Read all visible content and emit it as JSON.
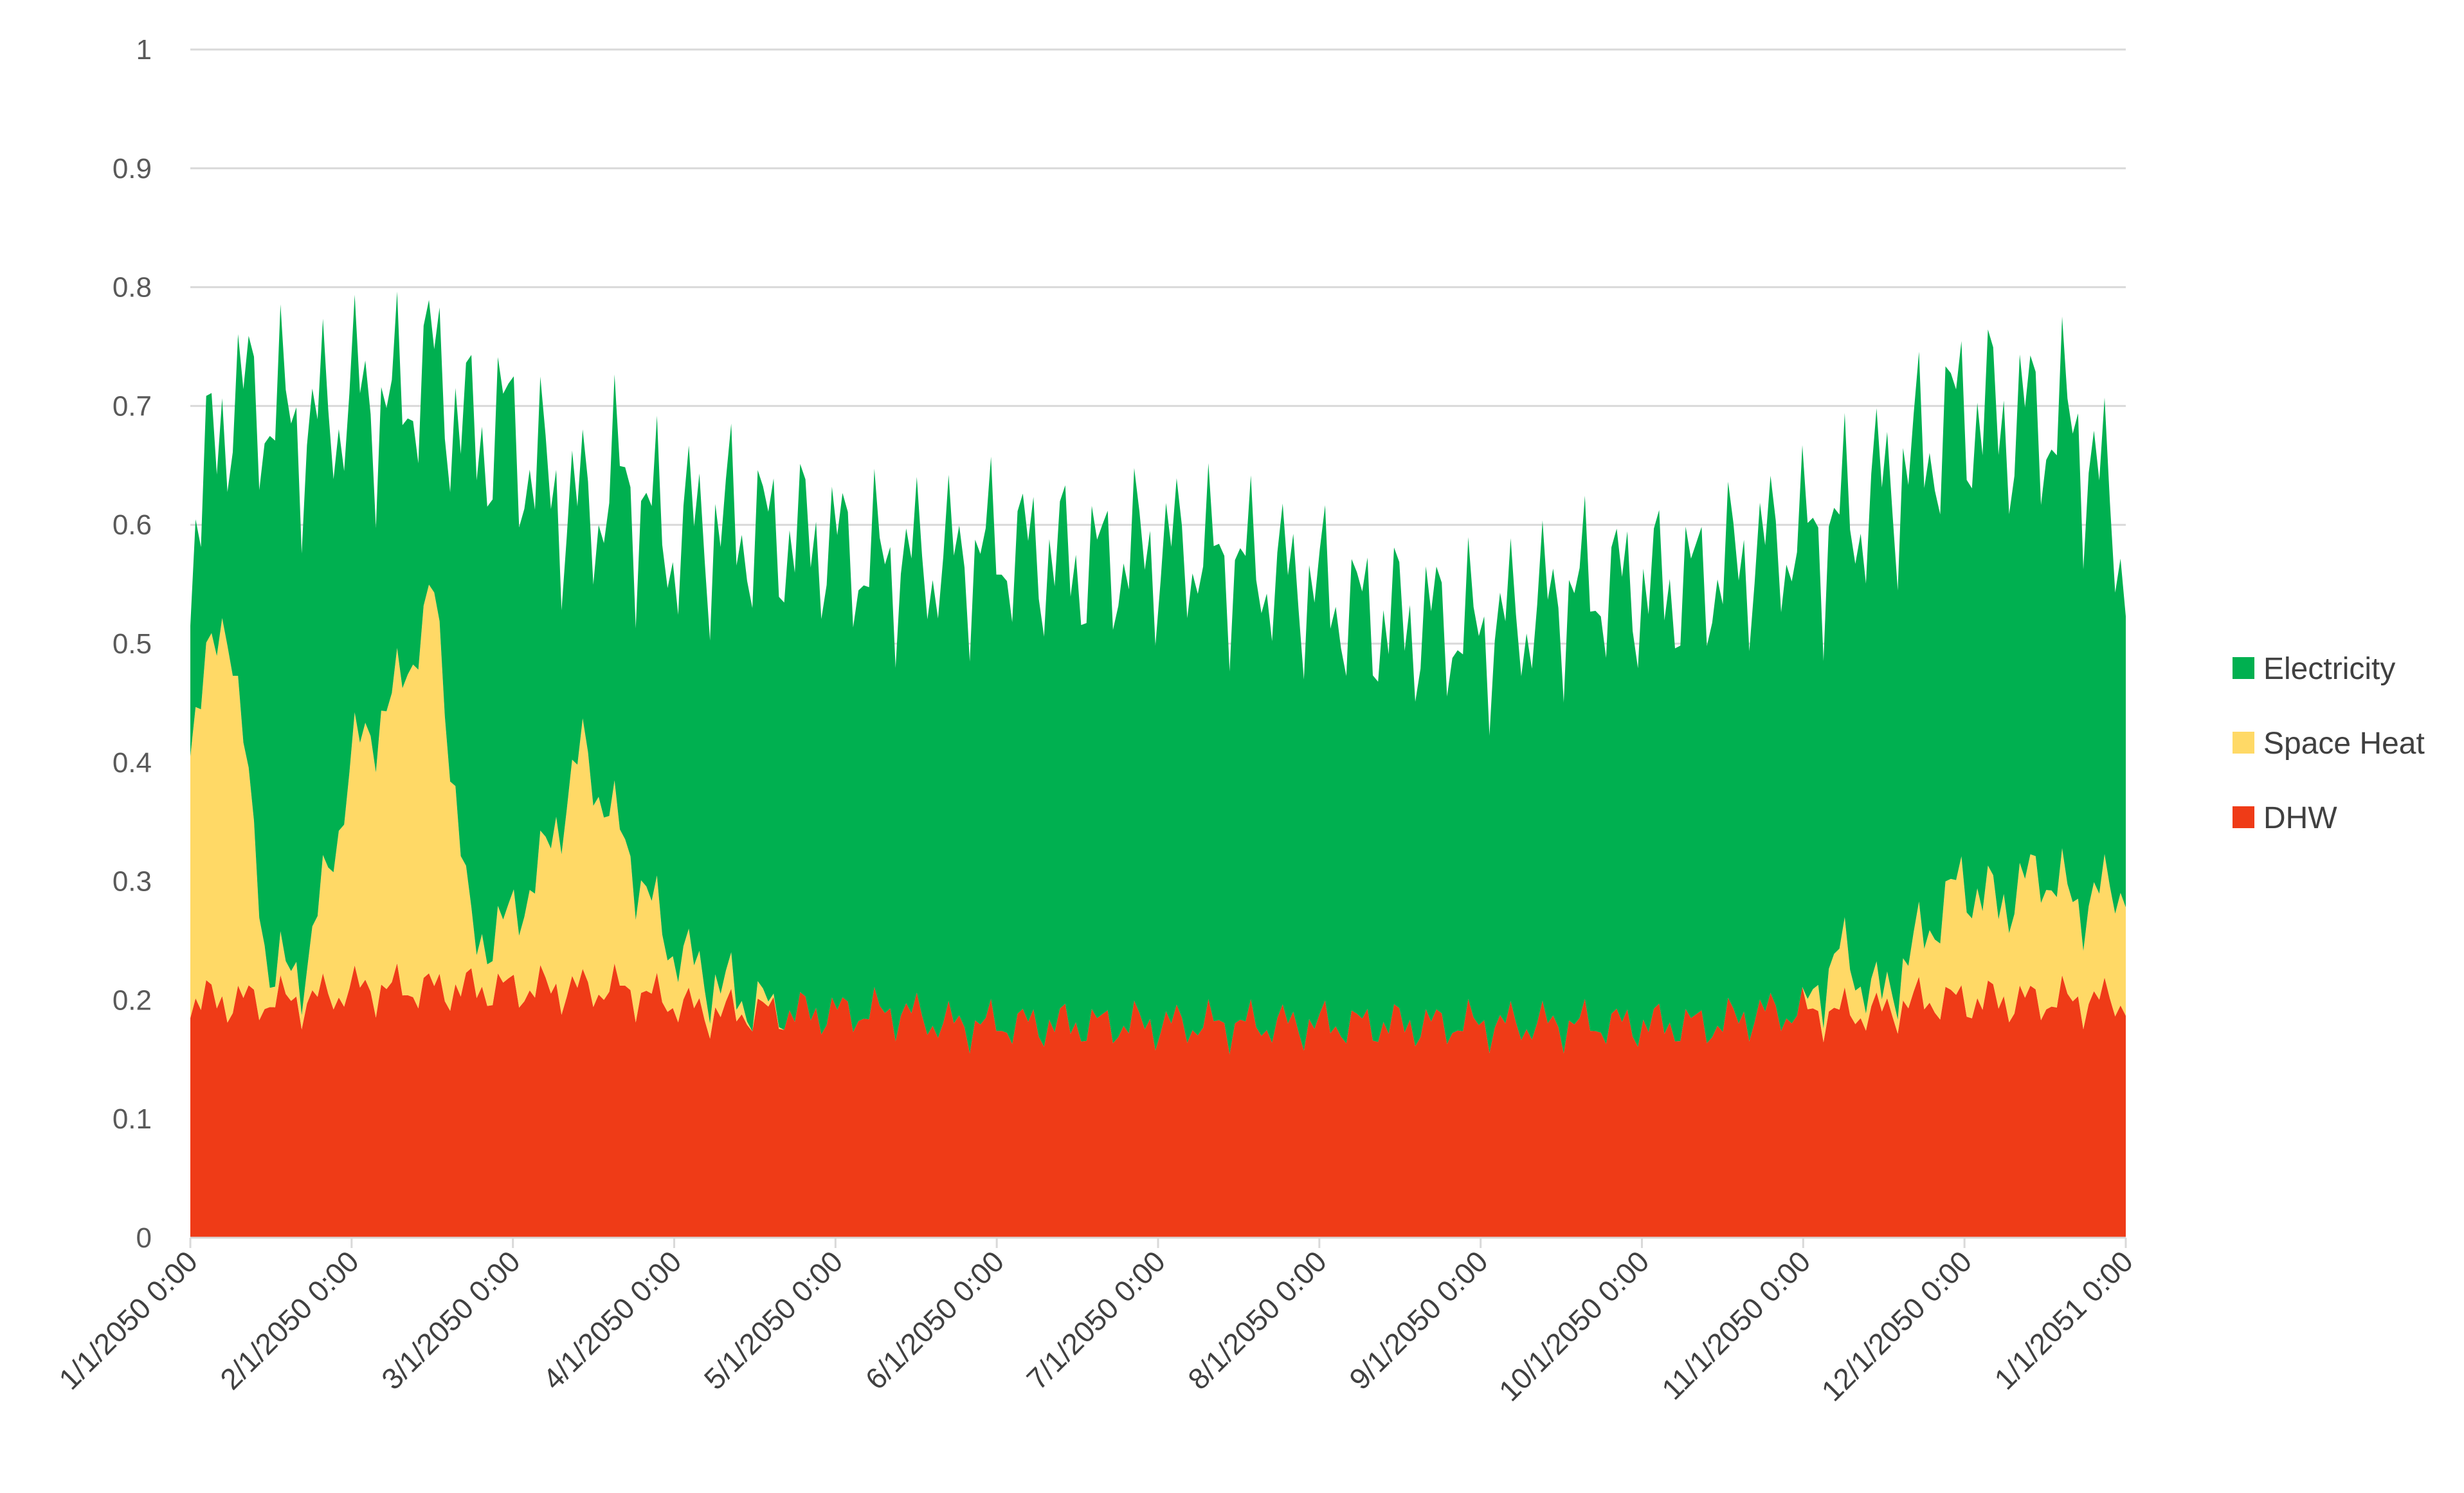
{
  "chart_data": {
    "type": "area",
    "stacked": true,
    "title": "",
    "xlabel": "",
    "ylabel": "",
    "ylim": [
      0,
      1
    ],
    "yticks": [
      "0",
      "0.1",
      "0.2",
      "0.3",
      "0.4",
      "0.5",
      "0.6",
      "0.7",
      "0.8",
      "0.9",
      "1"
    ],
    "xticks": [
      "1/1/2050 0:00",
      "2/1/2050 0:00",
      "3/1/2050 0:00",
      "4/1/2050 0:00",
      "5/1/2050 0:00",
      "6/1/2050 0:00",
      "7/1/2050 0:00",
      "8/1/2050 0:00",
      "9/1/2050 0:00",
      "10/1/2050 0:00",
      "11/1/2050 0:00",
      "12/1/2050 0:00",
      "1/1/2051 0:00"
    ],
    "grid": true,
    "legend_position": "right",
    "x_days": [
      0,
      7,
      15,
      22,
      31,
      38,
      46,
      53,
      59,
      66,
      74,
      81,
      90,
      97,
      105,
      112,
      120,
      127,
      135,
      142,
      151,
      158,
      166,
      173,
      181,
      188,
      196,
      204,
      212,
      219,
      227,
      235,
      243,
      250,
      258,
      265,
      273,
      280,
      288,
      296,
      304,
      311,
      319,
      326,
      334,
      341,
      349,
      356,
      365
    ],
    "series": [
      {
        "name": "DHW",
        "color": "#ef3b17",
        "values": [
          0.2,
          0.2,
          0.2,
          0.2,
          0.21,
          0.21,
          0.21,
          0.21,
          0.21,
          0.21,
          0.21,
          0.21,
          0.2,
          0.19,
          0.19,
          0.19,
          0.19,
          0.19,
          0.19,
          0.18,
          0.18,
          0.18,
          0.18,
          0.18,
          0.18,
          0.18,
          0.18,
          0.18,
          0.18,
          0.18,
          0.18,
          0.18,
          0.18,
          0.18,
          0.18,
          0.18,
          0.18,
          0.18,
          0.18,
          0.19,
          0.19,
          0.19,
          0.19,
          0.2,
          0.2,
          0.2,
          0.2,
          0.2,
          0.2
        ]
      },
      {
        "name": "Space Heat",
        "color": "#ffd966",
        "values": [
          0.23,
          0.33,
          0.02,
          0.03,
          0.2,
          0.24,
          0.33,
          0.04,
          0.05,
          0.1,
          0.2,
          0.13,
          0.05,
          0.03,
          0.01,
          0.0,
          0.0,
          0.0,
          0.0,
          0.0,
          0.0,
          0.0,
          0.0,
          0.0,
          0.0,
          0.0,
          0.0,
          0.0,
          0.0,
          0.0,
          0.0,
          0.0,
          0.0,
          0.0,
          0.0,
          0.0,
          0.0,
          0.0,
          0.0,
          0.0,
          0.0,
          0.05,
          0.01,
          0.05,
          0.1,
          0.08,
          0.11,
          0.08,
          0.1
        ]
      },
      {
        "name": "Electricity",
        "color": "#00b050",
        "values": [
          0.15,
          0.18,
          0.48,
          0.45,
          0.3,
          0.25,
          0.2,
          0.42,
          0.43,
          0.33,
          0.2,
          0.3,
          0.34,
          0.38,
          0.4,
          0.4,
          0.4,
          0.38,
          0.38,
          0.39,
          0.4,
          0.4,
          0.39,
          0.39,
          0.4,
          0.4,
          0.39,
          0.38,
          0.37,
          0.35,
          0.34,
          0.34,
          0.33,
          0.34,
          0.36,
          0.37,
          0.37,
          0.37,
          0.38,
          0.39,
          0.4,
          0.36,
          0.43,
          0.41,
          0.4,
          0.41,
          0.38,
          0.4,
          0.28
        ]
      }
    ]
  }
}
